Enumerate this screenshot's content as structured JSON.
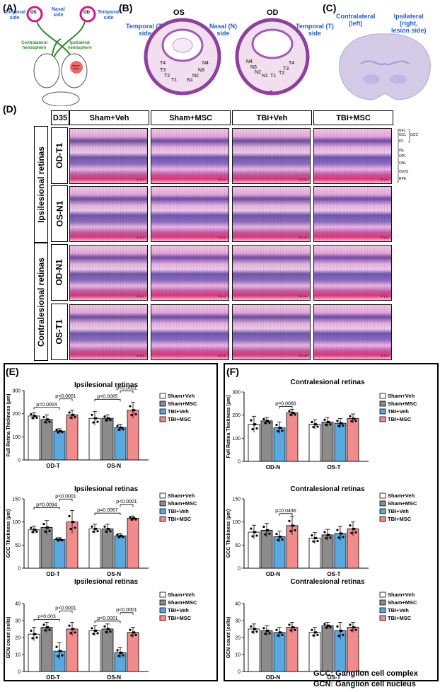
{
  "panel_labels": {
    "a": "(A)",
    "b": "(B)",
    "c": "(C)",
    "d": "(D)",
    "e": "(E)",
    "f": "(F)"
  },
  "schematic": {
    "os": "OS",
    "od": "OD",
    "temporal_left": "Temporal\nside",
    "nasal": "Nasal\nside",
    "temporal_right": "Temporal\nside",
    "contra": "Contralateral\nhemisphere",
    "ipsi": "Ipsilateral\nhemisphere",
    "lesion": "lesion\narea"
  },
  "eye_sections": {
    "os": "OS",
    "od": "OD",
    "temporal_left": "Temporal (T)\nside",
    "nasal": "Nasal (N)\nside",
    "temporal_right": "Temporal (T)\nside",
    "os_regions": [
      "T4",
      "T3",
      "T2",
      "T1",
      "N1",
      "N2",
      "N3",
      "N4"
    ],
    "od_regions": [
      "N4",
      "N3",
      "N2",
      "N1",
      "T1",
      "T2",
      "T3",
      "T4"
    ]
  },
  "brain": {
    "contra": "Contralateral\n(left)",
    "ipsi": "Ipsilateral\n(right,\nlesion side)"
  },
  "histology": {
    "day": "D35",
    "groups": [
      "Sham+Veh",
      "Sham+MSC",
      "TBI+Veh",
      "TBI+MSC"
    ],
    "side_labels": [
      "Ipsilesional retinas",
      "Contralesional retinas"
    ],
    "rows": [
      "OD-T1",
      "OS-N1",
      "OD-N1",
      "OS-T1"
    ],
    "layers": [
      "NFL",
      "GCL",
      "GCC",
      "IPL",
      "INL",
      "OPL",
      "ONL",
      "IS/OS",
      "RPE"
    ],
    "scale": "50 µm"
  },
  "footnotes": {
    "gcc": "GCC: Ganglion cell complex",
    "gcn": "GCN: Ganglion cell nucleus"
  },
  "legend": [
    "Sham+Veh",
    "Sham+MSC",
    "TBI+Veh",
    "TBI+MSC"
  ],
  "colors": {
    "Sham+Veh": "#ffffff",
    "Sham+MSC": "#8c8c8c",
    "TBI+Veh": "#59a8e0",
    "TBI+MSC": "#f28b8b",
    "accent_blue": "#1f5fd0"
  },
  "chart_data": [
    {
      "id": "E1",
      "type": "bar",
      "title": "Ipsilesional retinas",
      "ylabel": "Full Retina Thickness (µm)",
      "ylim": [
        0,
        300
      ],
      "ticks": [
        0,
        100,
        200,
        300
      ],
      "categories": [
        "OD-T",
        "OS-N"
      ],
      "series": [
        {
          "name": "Sham+Veh",
          "values": [
            190,
            180
          ],
          "err": [
            15,
            30
          ]
        },
        {
          "name": "Sham+MSC",
          "values": [
            175,
            180
          ],
          "err": [
            20,
            15
          ]
        },
        {
          "name": "TBI+Veh",
          "values": [
            125,
            140
          ],
          "err": [
            10,
            15
          ]
        },
        {
          "name": "TBI+MSC",
          "values": [
            195,
            215
          ],
          "err": [
            20,
            35
          ]
        }
      ],
      "annotations": [
        {
          "text": "p=0.0004",
          "cat": 0,
          "from": 0,
          "to": 2,
          "level": 1
        },
        {
          "text": "p<0.0001",
          "cat": 0,
          "from": 2,
          "to": 3,
          "level": 2
        },
        {
          "text": "p=0.0085",
          "cat": 1,
          "from": 0,
          "to": 2,
          "level": 1
        },
        {
          "text": "p<0.0001",
          "cat": 1,
          "from": 2,
          "to": 3,
          "level": 2
        }
      ]
    },
    {
      "id": "F1",
      "type": "bar",
      "title": "Contralesional retinas",
      "ylabel": "Full Retina Thickness (µm)",
      "ylim": [
        0,
        300
      ],
      "ticks": [
        0,
        100,
        200,
        300
      ],
      "categories": [
        "OD-N",
        "OS-T"
      ],
      "series": [
        {
          "name": "Sham+Veh",
          "values": [
            160,
            160
          ],
          "err": [
            35,
            20
          ]
        },
        {
          "name": "Sham+MSC",
          "values": [
            175,
            170
          ],
          "err": [
            15,
            20
          ]
        },
        {
          "name": "TBI+Veh",
          "values": [
            145,
            165
          ],
          "err": [
            25,
            20
          ]
        },
        {
          "name": "TBI+MSC",
          "values": [
            210,
            185
          ],
          "err": [
            15,
            20
          ]
        }
      ],
      "annotations": [
        {
          "text": "p=0.0066",
          "cat": 0,
          "from": 2,
          "to": 3,
          "level": 1
        }
      ]
    },
    {
      "id": "E2",
      "type": "bar",
      "title": "Ipsilesional retinas",
      "ylabel": "GCC Thickness (µm)",
      "ylim": [
        0,
        150
      ],
      "ticks": [
        0,
        50,
        100,
        150
      ],
      "categories": [
        "OD-T",
        "OS-N"
      ],
      "series": [
        {
          "name": "Sham+Veh",
          "values": [
            83,
            85
          ],
          "err": [
            8,
            10
          ]
        },
        {
          "name": "Sham+MSC",
          "values": [
            88,
            85
          ],
          "err": [
            15,
            10
          ]
        },
        {
          "name": "TBI+Veh",
          "values": [
            62,
            70
          ],
          "err": [
            4,
            5
          ]
        },
        {
          "name": "TBI+MSC",
          "values": [
            100,
            108
          ],
          "err": [
            25,
            5
          ]
        }
      ],
      "annotations": [
        {
          "text": "p=0.0094",
          "cat": 0,
          "from": 0,
          "to": 2,
          "level": 1
        },
        {
          "text": "p<0.0001",
          "cat": 0,
          "from": 2,
          "to": 3,
          "level": 2
        },
        {
          "text": "p=0.0067",
          "cat": 1,
          "from": 0,
          "to": 2,
          "level": 1
        },
        {
          "text": "p<0.0001",
          "cat": 1,
          "from": 2,
          "to": 3,
          "level": 2
        }
      ]
    },
    {
      "id": "F2",
      "type": "bar",
      "title": "Contralesional retinas",
      "ylabel": "GCC Thickness (µm)",
      "ylim": [
        0,
        150
      ],
      "ticks": [
        0,
        50,
        100,
        150
      ],
      "categories": [
        "OD-N",
        "OS-T"
      ],
      "series": [
        {
          "name": "Sham+Veh",
          "values": [
            78,
            65
          ],
          "err": [
            15,
            12
          ]
        },
        {
          "name": "Sham+MSC",
          "values": [
            82,
            72
          ],
          "err": [
            15,
            12
          ]
        },
        {
          "name": "TBI+Veh",
          "values": [
            68,
            75
          ],
          "err": [
            12,
            15
          ]
        },
        {
          "name": "TBI+MSC",
          "values": [
            92,
            85
          ],
          "err": [
            20,
            15
          ]
        }
      ],
      "annotations": [
        {
          "text": "p=0.0436",
          "cat": 0,
          "from": 2,
          "to": 3,
          "level": 1
        }
      ]
    },
    {
      "id": "E3",
      "type": "bar",
      "title": "Ipsilesional retinas",
      "ylabel": "GCN count (cells)",
      "ylim": [
        0,
        40
      ],
      "ticks": [
        0,
        10,
        20,
        30,
        40
      ],
      "categories": [
        "OD-T",
        "OS-N"
      ],
      "series": [
        {
          "name": "Sham+Veh",
          "values": [
            22,
            24
          ],
          "err": [
            4,
            3
          ]
        },
        {
          "name": "Sham+MSC",
          "values": [
            26,
            25
          ],
          "err": [
            3,
            3
          ]
        },
        {
          "name": "TBI+Veh",
          "values": [
            12,
            11
          ],
          "err": [
            5,
            3
          ]
        },
        {
          "name": "TBI+MSC",
          "values": [
            25,
            23
          ],
          "err": [
            4,
            3
          ]
        }
      ],
      "annotations": [
        {
          "text": "p=0.003",
          "cat": 0,
          "from": 0,
          "to": 2,
          "level": 1
        },
        {
          "text": "p<0.0001",
          "cat": 0,
          "from": 2,
          "to": 3,
          "level": 2
        },
        {
          "text": "p<0.0001",
          "cat": 1,
          "from": 0,
          "to": 2,
          "level": 1
        },
        {
          "text": "p<0.0001",
          "cat": 1,
          "from": 2,
          "to": 3,
          "level": 2
        }
      ]
    },
    {
      "id": "F3",
      "type": "bar",
      "title": "Contralesional retinas",
      "ylabel": "GCN count (cells)",
      "ylim": [
        0,
        40
      ],
      "ticks": [
        0,
        10,
        20,
        30,
        40
      ],
      "categories": [
        "OD-N",
        "OS-T"
      ],
      "series": [
        {
          "name": "Sham+Veh",
          "values": [
            25,
            23
          ],
          "err": [
            3,
            3
          ]
        },
        {
          "name": "Sham+MSC",
          "values": [
            24,
            27
          ],
          "err": [
            3,
            2
          ]
        },
        {
          "name": "TBI+Veh",
          "values": [
            23,
            24
          ],
          "err": [
            3,
            5
          ]
        },
        {
          "name": "TBI+MSC",
          "values": [
            26,
            26
          ],
          "err": [
            3,
            3
          ]
        }
      ],
      "annotations": []
    }
  ]
}
